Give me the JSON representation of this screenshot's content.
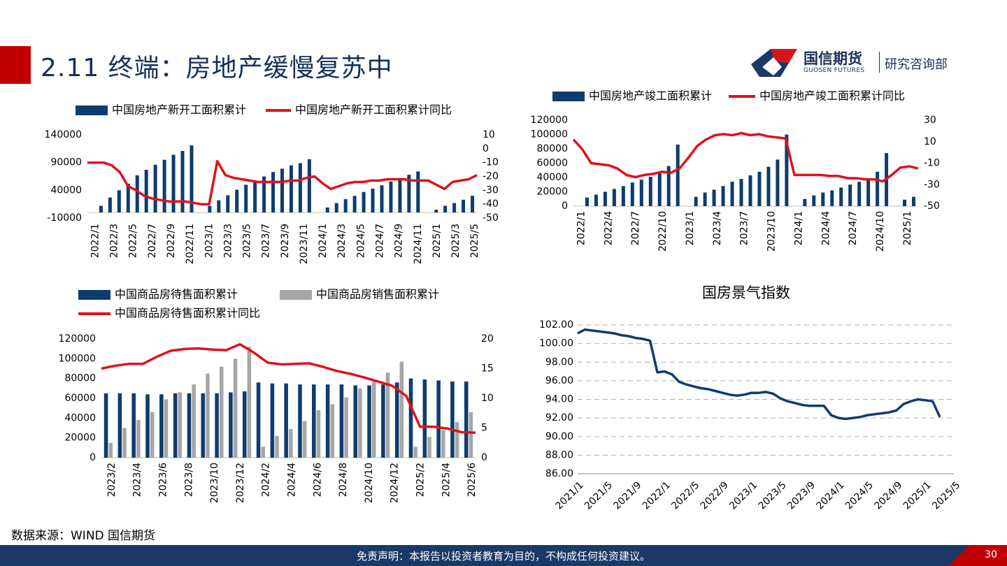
{
  "header": {
    "title": "2.11 终端：房地产缓慢复苏中"
  },
  "logo": {
    "name": "国信期货",
    "en": "GUOSEN FUTURES",
    "dept": "研究咨询部"
  },
  "footer": {
    "source": "数据来源：WIND 国信期货",
    "disclaimer": "免责声明：本报告以投资者教育为目的，不构成任何投资建议。",
    "page": "30"
  },
  "colors": {
    "bar": "#0e3c6e",
    "line": "#e3101e",
    "gray": "#a6a6a6",
    "title_red": "#c00000",
    "navy": "#1b3866"
  },
  "chart_data": [
    {
      "type": "bar",
      "xlabels": [
        "2022/1",
        "2022/3",
        "2022/5",
        "2022/7",
        "2022/9",
        "2022/11",
        "2023/1",
        "2023/3",
        "2023/5",
        "2023/7",
        "2023/9",
        "2023/11",
        "2024/1",
        "2024/3",
        "2024/5",
        "2024/7",
        "2024/9",
        "2024/11",
        "2025/1",
        "2025/3",
        "2025/5"
      ],
      "ylim": [
        -10000,
        140000
      ],
      "yticks": [
        "-10000",
        "40000",
        "90000",
        "140000"
      ],
      "y2lim": [
        -50,
        10
      ],
      "y2ticks": [
        "-50",
        "-40",
        "-30",
        "-20",
        "-10",
        "0",
        "10"
      ],
      "series": [
        {
          "name": "中国房地产新开工面积累计",
          "kind": "bar",
          "values": [
            null,
            12000,
            27000,
            40000,
            52000,
            67000,
            77000,
            86000,
            95000,
            104000,
            111000,
            121000,
            null,
            12000,
            22000,
            31000,
            41000,
            50000,
            57000,
            65000,
            73000,
            79000,
            85000,
            89000,
            96000,
            null,
            9000,
            17000,
            24000,
            30000,
            37000,
            43000,
            49000,
            56000,
            62000,
            68000,
            74000,
            null,
            5000,
            12000,
            17000,
            23000,
            30000
          ]
        },
        {
          "name": "中国房地产新开工面积累计同比",
          "kind": "line",
          "axis": "y2",
          "values": [
            -10,
            -10,
            -10,
            -12,
            -17,
            -27,
            -30,
            -34,
            -36,
            -37,
            -38,
            -38,
            -38,
            -39,
            -40,
            -40,
            -9,
            -19,
            -21,
            -22,
            -23,
            -24,
            -24,
            -24,
            -24,
            -23,
            -23,
            -21,
            -20,
            -25,
            -29,
            -27,
            -25,
            -24,
            -24,
            -23,
            -23,
            -22,
            -22,
            -22,
            -23,
            -23,
            -23,
            -26,
            -29,
            -24,
            -23,
            -22,
            -19
          ]
        }
      ]
    },
    {
      "type": "bar",
      "xlabels": [
        "2022/1",
        "2022/4",
        "2022/7",
        "2022/10",
        "2023/1",
        "2023/4",
        "2023/7",
        "2023/10",
        "2024/1",
        "2024/4",
        "2024/7",
        "2024/10",
        "2025/1"
      ],
      "ylim": [
        0,
        120000
      ],
      "yticks": [
        "0",
        "20000",
        "40000",
        "60000",
        "80000",
        "100000",
        "120000"
      ],
      "y2lim": [
        -50,
        30
      ],
      "y2ticks": [
        "-50",
        "-30",
        "-10",
        "10",
        "30"
      ],
      "series": [
        {
          "name": "中国房地产竣工面积累计",
          "kind": "bar",
          "values": [
            null,
            12000,
            16000,
            20000,
            24000,
            28000,
            33000,
            37000,
            41000,
            46000,
            56000,
            86000,
            null,
            13000,
            19000,
            23000,
            28000,
            34000,
            38000,
            43000,
            48000,
            55000,
            65000,
            100000,
            null,
            10000,
            15000,
            19000,
            22000,
            26000,
            30000,
            34000,
            39000,
            48000,
            74000,
            null,
            9000,
            13000
          ]
        },
        {
          "name": "中国房地产竣工面积累计同比",
          "kind": "line",
          "axis": "y2",
          "values": [
            12,
            3,
            -10,
            -11,
            -12,
            -15,
            -21,
            -23,
            -21,
            -20,
            -18,
            -19,
            -15,
            -5,
            6,
            12,
            16,
            17,
            16,
            18,
            16,
            17,
            15,
            14,
            13,
            -21,
            -21,
            -21,
            -21,
            -22,
            -22,
            -24,
            -24,
            -25,
            -25,
            -27,
            -21,
            -14,
            -13,
            -15
          ]
        }
      ]
    },
    {
      "type": "bar",
      "xlabels": [
        "2023/2",
        "2023/4",
        "2023/6",
        "2023/8",
        "2023/10",
        "2023/12",
        "2024/2",
        "2024/4",
        "2024/6",
        "2024/8",
        "2024/10",
        "2024/12",
        "2025/2",
        "2025/4",
        "2025/6"
      ],
      "ylim": [
        0,
        120000
      ],
      "yticks": [
        "0",
        "20000",
        "40000",
        "60000",
        "80000",
        "100000",
        "120000"
      ],
      "y2lim": [
        0,
        20
      ],
      "y2ticks": [
        "0",
        "5",
        "10",
        "15",
        "20"
      ],
      "series": [
        {
          "name": "中国商品房待售面积累计",
          "kind": "bar",
          "values": [
            65000,
            65000,
            65000,
            64000,
            64000,
            65000,
            65000,
            65000,
            65000,
            66000,
            67000,
            76000,
            75000,
            75000,
            74000,
            74000,
            74000,
            74000,
            73000,
            73000,
            74000,
            76000,
            80000,
            79000,
            78000,
            77000,
            77000
          ]
        },
        {
          "name": "中国商品房销售面积累计",
          "kind": "bar",
          "values": [
            15000,
            30000,
            38000,
            46000,
            59000,
            66000,
            74000,
            85000,
            92000,
            100000,
            112000,
            11000,
            22000,
            29000,
            37000,
            48000,
            54000,
            61000,
            70000,
            77000,
            86000,
            97000,
            11000,
            21000,
            28000,
            36000,
            46000
          ]
        },
        {
          "name": "中国商品房待售面积累计同比",
          "kind": "line",
          "axis": "y2",
          "values": [
            15,
            15.5,
            15.8,
            15.8,
            17,
            18,
            18.3,
            18.4,
            18.2,
            18.1,
            19.1,
            17.7,
            16,
            15.7,
            15.8,
            15.9,
            15.3,
            14.6,
            14.1,
            13.5,
            12.8,
            12.1,
            10.4,
            5.2,
            5.2,
            4.9,
            4.3,
            4.2
          ]
        }
      ]
    },
    {
      "type": "line",
      "title": "国房景气指数",
      "xlabels": [
        "2021/1",
        "2021/5",
        "2021/9",
        "2022/1",
        "2022/5",
        "2022/9",
        "2023/1",
        "2023/5",
        "2023/9",
        "2024/1",
        "2024/5",
        "2024/9",
        "2025/1",
        "2025/5"
      ],
      "ylim": [
        86,
        102
      ],
      "yticks": [
        "86.00",
        "88.00",
        "90.00",
        "92.00",
        "94.00",
        "96.00",
        "98.00",
        "100.00",
        "102.00"
      ],
      "series": [
        {
          "name": "国房景气指数",
          "values": [
            101.1,
            101.5,
            101.4,
            101.3,
            101.2,
            101.1,
            100.9,
            100.8,
            100.6,
            100.5,
            100.3,
            96.9,
            97,
            96.7,
            95.9,
            95.6,
            95.4,
            95.2,
            95.1,
            94.9,
            94.7,
            94.5,
            94.4,
            94.5,
            94.7,
            94.7,
            94.8,
            94.6,
            94.1,
            93.8,
            93.6,
            93.4,
            93.3,
            93.3,
            93.3,
            92.3,
            92,
            91.9,
            92,
            92.1,
            92.3,
            92.4,
            92.5,
            92.6,
            92.8,
            93.5,
            93.8,
            94,
            93.9,
            93.8,
            92.1
          ]
        }
      ]
    }
  ]
}
